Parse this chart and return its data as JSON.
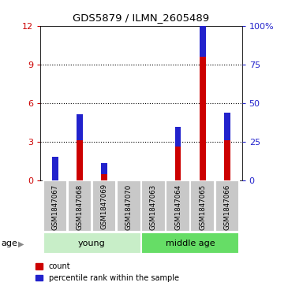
{
  "title": "GDS5879 / ILMN_2605489",
  "samples": [
    "GSM1847067",
    "GSM1847068",
    "GSM1847069",
    "GSM1847070",
    "GSM1847063",
    "GSM1847064",
    "GSM1847065",
    "GSM1847066"
  ],
  "count_values": [
    0.0,
    3.1,
    0.5,
    0.0,
    0.0,
    2.6,
    9.6,
    3.1
  ],
  "percentile_values": [
    15,
    17,
    7,
    0,
    0,
    13,
    35,
    18
  ],
  "left_ylim": [
    0,
    12
  ],
  "right_ylim": [
    0,
    100
  ],
  "left_yticks": [
    0,
    3,
    6,
    9,
    12
  ],
  "right_yticks": [
    0,
    25,
    50,
    75,
    100
  ],
  "right_yticklabels": [
    "0",
    "25",
    "50",
    "75",
    "100%"
  ],
  "count_color": "#CC0000",
  "percentile_color": "#2222CC",
  "bar_width": 0.25,
  "group_bg_color": "#90EE90",
  "sample_bg_color": "#C8C8C8",
  "young_color": "#C8EEC8",
  "middle_color": "#66DD66",
  "groups": [
    {
      "label": "young",
      "start": 0,
      "end": 3
    },
    {
      "label": "middle age",
      "start": 4,
      "end": 7
    }
  ]
}
